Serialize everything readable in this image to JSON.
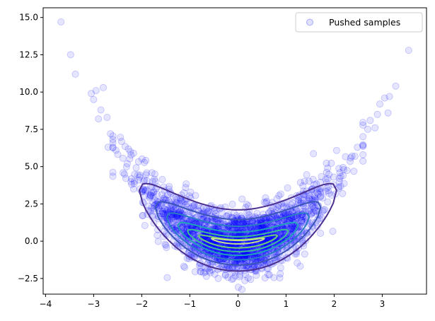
{
  "chart_data": {
    "type": "scatter",
    "title": "",
    "xlabel": "",
    "ylabel": "",
    "xlim": [
      -4.05,
      3.92
    ],
    "ylim": [
      -3.55,
      15.65
    ],
    "x_ticks": [
      -4,
      -3,
      -2,
      -1,
      0,
      1,
      2,
      3
    ],
    "y_ticks": [
      -2.5,
      0.0,
      2.5,
      5.0,
      7.5,
      10.0,
      12.5,
      15.0
    ],
    "x_tick_labels": [
      "−4",
      "−3",
      "−2",
      "−1",
      "0",
      "1",
      "2",
      "3"
    ],
    "y_tick_labels": [
      "−2.5",
      "0.0",
      "2.5",
      "5.0",
      "7.5",
      "10.0",
      "12.5",
      "15.0"
    ],
    "grid": false,
    "legend": {
      "position": "top-right",
      "entries": [
        "Pushed samples"
      ]
    },
    "series": [
      {
        "name": "Pushed samples",
        "kind": "scatter",
        "color": "#0000ff",
        "alpha": 0.1,
        "sample_count_approx": 2000,
        "distribution": "banana: y ≈ x² + noise, x ~ N(0, 1)",
        "outlier_points": [
          [
            -3.68,
            14.7
          ],
          [
            -3.48,
            12.5
          ],
          [
            -3.38,
            11.2
          ],
          [
            -3.05,
            9.9
          ],
          [
            -3.0,
            9.5
          ],
          [
            -2.95,
            10.1
          ],
          [
            -2.85,
            8.8
          ],
          [
            -2.8,
            10.3
          ],
          [
            -2.9,
            8.2
          ],
          [
            -2.72,
            8.3
          ],
          [
            -2.65,
            7.2
          ],
          [
            -2.6,
            6.6
          ],
          [
            -2.7,
            6.3
          ],
          [
            3.55,
            12.8
          ],
          [
            3.28,
            10.4
          ],
          [
            3.15,
            9.7
          ],
          [
            3.05,
            9.6
          ],
          [
            3.12,
            8.6
          ],
          [
            2.95,
            9.2
          ],
          [
            2.9,
            8.5
          ],
          [
            2.85,
            7.6
          ],
          [
            2.75,
            8.1
          ],
          [
            2.7,
            7.5
          ]
        ]
      },
      {
        "name": "",
        "kind": "density-contours",
        "levels": [
          {
            "a": 2.05,
            "bottom": -2.0,
            "top": 2.1,
            "color": "#4b2f8f"
          },
          {
            "a": 1.72,
            "bottom": -1.6,
            "top": 1.45,
            "color": "#3a56b6"
          },
          {
            "a": 1.48,
            "bottom": -1.25,
            "top": 1.0,
            "color": "#2b7dc2"
          },
          {
            "a": 1.25,
            "bottom": -0.95,
            "top": 0.6,
            "color": "#21a2b8"
          },
          {
            "a": 1.05,
            "bottom": -0.7,
            "top": 0.3,
            "color": "#3cbc98"
          },
          {
            "a": 0.82,
            "bottom": -0.45,
            "top": 0.1,
            "color": "#72cf6f"
          },
          {
            "a": 0.55,
            "bottom": -0.18,
            "top": 0.05,
            "color": "#c8e28a"
          }
        ]
      }
    ]
  }
}
